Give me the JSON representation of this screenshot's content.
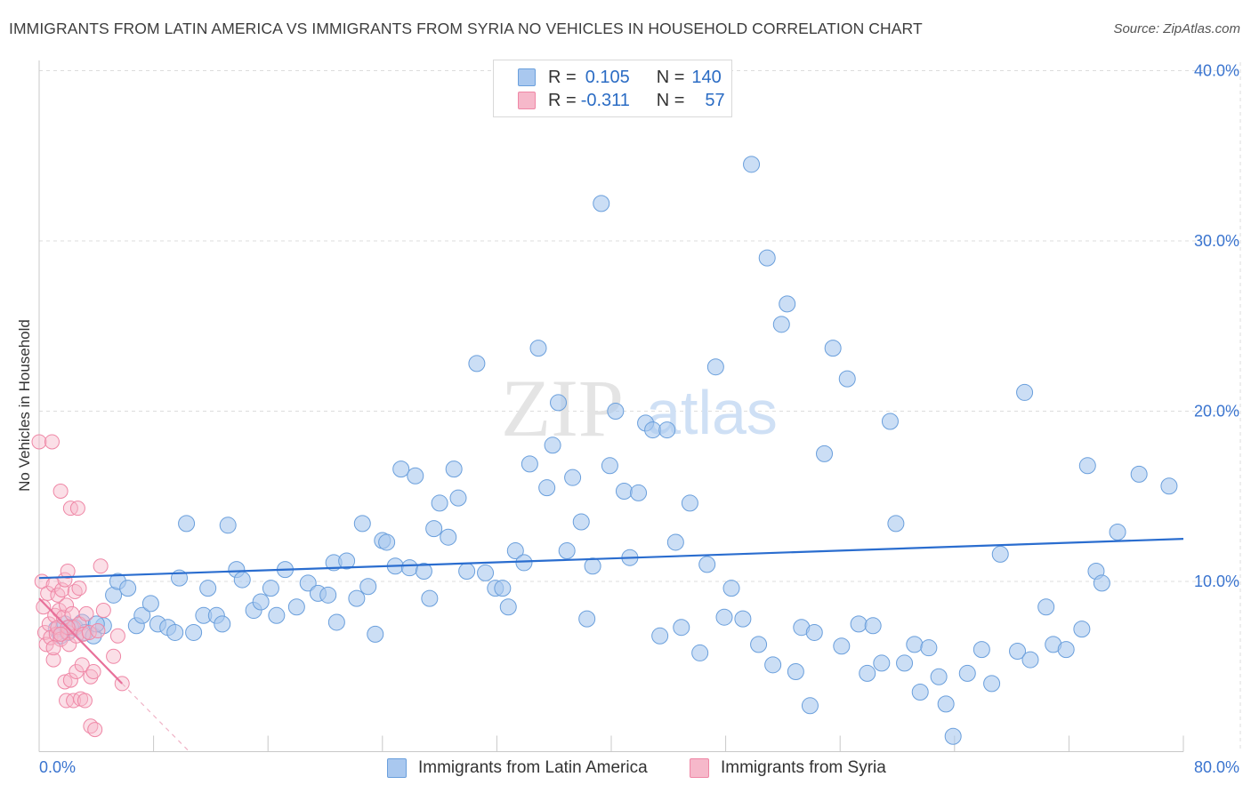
{
  "title": "IMMIGRANTS FROM LATIN AMERICA VS IMMIGRANTS FROM SYRIA NO VEHICLES IN HOUSEHOLD CORRELATION CHART",
  "source": "Source: ZipAtlas.com",
  "watermark": {
    "zip": "ZIP",
    "atlas": "atlas"
  },
  "legend": {
    "rows": [
      {
        "r_label": "R =",
        "r_value": "0.105",
        "n_label": "N =",
        "n_value": "140",
        "color": "#a9c8ef"
      },
      {
        "r_label": "R =",
        "r_value": "-0.311",
        "n_label": "N =",
        "n_value": "57",
        "color": "#f6b8ca"
      }
    ]
  },
  "colors": {
    "blue_fill": "#a9c8ef",
    "blue_stroke": "#6a9fdc",
    "blue_line": "#2a6dcf",
    "pink_fill": "#f6b8ca",
    "pink_stroke": "#ef87a6",
    "pink_line": "#e8709a",
    "axis_text": "#3a74cf",
    "grid": "#dcdcdc"
  },
  "chart_data": {
    "type": "scatter",
    "title": "IMMIGRANTS FROM LATIN AMERICA VS IMMIGRANTS FROM SYRIA NO VEHICLES IN HOUSEHOLD CORRELATION CHART",
    "xlabel": "",
    "ylabel": "No Vehicles in Household",
    "xlim": [
      0,
      80
    ],
    "ylim": [
      0,
      42
    ],
    "x_tick_labels": [
      "0.0%",
      "80.0%"
    ],
    "y_ticks": [
      10,
      20,
      30,
      40
    ],
    "y_tick_labels": [
      "10.0%",
      "20.0%",
      "30.0%",
      "40.0%"
    ],
    "grid": true,
    "legend_position": "top-center",
    "series": [
      {
        "name": "Immigrants from Latin America",
        "r": 0.105,
        "n": 140,
        "trend": [
          [
            0,
            10.2
          ],
          [
            80,
            12.5
          ]
        ],
        "points": [
          [
            1.2,
            7.2
          ],
          [
            1.5,
            6.8
          ],
          [
            1.8,
            7.5
          ],
          [
            2.0,
            7.0
          ],
          [
            2.5,
            7.3
          ],
          [
            3.0,
            7.6
          ],
          [
            3.2,
            7.0
          ],
          [
            3.8,
            6.8
          ],
          [
            4.5,
            7.4
          ],
          [
            5.2,
            9.2
          ],
          [
            5.5,
            10.0
          ],
          [
            6.2,
            9.6
          ],
          [
            6.8,
            7.4
          ],
          [
            7.2,
            8.0
          ],
          [
            7.8,
            8.7
          ],
          [
            8.3,
            7.5
          ],
          [
            9.0,
            7.3
          ],
          [
            9.5,
            7.0
          ],
          [
            9.8,
            10.2
          ],
          [
            10.3,
            13.4
          ],
          [
            10.8,
            7.0
          ],
          [
            11.5,
            8.0
          ],
          [
            11.8,
            9.6
          ],
          [
            12.4,
            8.0
          ],
          [
            12.8,
            7.5
          ],
          [
            13.2,
            13.3
          ],
          [
            13.8,
            10.7
          ],
          [
            14.2,
            10.1
          ],
          [
            15.0,
            8.3
          ],
          [
            15.5,
            8.8
          ],
          [
            16.2,
            9.6
          ],
          [
            16.6,
            8.0
          ],
          [
            17.2,
            10.7
          ],
          [
            18.0,
            8.5
          ],
          [
            18.8,
            9.9
          ],
          [
            19.5,
            9.3
          ],
          [
            20.2,
            9.2
          ],
          [
            20.6,
            11.1
          ],
          [
            20.8,
            7.6
          ],
          [
            21.5,
            11.2
          ],
          [
            22.2,
            9.0
          ],
          [
            22.6,
            13.4
          ],
          [
            23.0,
            9.7
          ],
          [
            23.5,
            6.9
          ],
          [
            24.0,
            12.4
          ],
          [
            24.3,
            12.3
          ],
          [
            24.9,
            10.9
          ],
          [
            25.3,
            16.6
          ],
          [
            25.9,
            10.8
          ],
          [
            26.3,
            16.2
          ],
          [
            26.9,
            10.6
          ],
          [
            27.3,
            9.0
          ],
          [
            27.6,
            13.1
          ],
          [
            28.0,
            14.6
          ],
          [
            28.6,
            12.6
          ],
          [
            29.0,
            16.6
          ],
          [
            29.3,
            14.9
          ],
          [
            29.9,
            10.6
          ],
          [
            30.6,
            22.8
          ],
          [
            31.2,
            10.5
          ],
          [
            31.9,
            9.6
          ],
          [
            32.4,
            9.6
          ],
          [
            32.8,
            8.5
          ],
          [
            33.3,
            11.8
          ],
          [
            33.9,
            11.1
          ],
          [
            34.3,
            16.9
          ],
          [
            34.9,
            23.7
          ],
          [
            35.5,
            15.5
          ],
          [
            35.9,
            18.0
          ],
          [
            36.3,
            20.5
          ],
          [
            36.9,
            11.8
          ],
          [
            37.3,
            16.1
          ],
          [
            37.9,
            13.5
          ],
          [
            38.3,
            7.8
          ],
          [
            38.7,
            10.9
          ],
          [
            39.3,
            32.2
          ],
          [
            39.9,
            16.8
          ],
          [
            40.3,
            20.0
          ],
          [
            40.9,
            15.3
          ],
          [
            41.3,
            11.4
          ],
          [
            41.9,
            15.2
          ],
          [
            42.4,
            19.3
          ],
          [
            42.9,
            18.9
          ],
          [
            43.4,
            6.8
          ],
          [
            43.9,
            18.9
          ],
          [
            44.5,
            12.3
          ],
          [
            44.9,
            7.3
          ],
          [
            45.5,
            14.6
          ],
          [
            46.2,
            5.8
          ],
          [
            46.7,
            11.0
          ],
          [
            47.3,
            22.6
          ],
          [
            47.9,
            7.9
          ],
          [
            48.4,
            9.6
          ],
          [
            49.2,
            7.8
          ],
          [
            49.8,
            34.5
          ],
          [
            50.3,
            6.3
          ],
          [
            50.9,
            29.0
          ],
          [
            51.3,
            5.1
          ],
          [
            51.9,
            25.1
          ],
          [
            52.3,
            26.3
          ],
          [
            52.9,
            4.7
          ],
          [
            53.3,
            7.3
          ],
          [
            53.9,
            2.7
          ],
          [
            54.2,
            7.0
          ],
          [
            54.9,
            17.5
          ],
          [
            55.5,
            23.7
          ],
          [
            56.1,
            6.2
          ],
          [
            56.5,
            21.9
          ],
          [
            57.3,
            7.5
          ],
          [
            57.9,
            4.6
          ],
          [
            58.3,
            7.4
          ],
          [
            58.9,
            5.2
          ],
          [
            59.5,
            19.4
          ],
          [
            59.9,
            13.4
          ],
          [
            60.5,
            5.2
          ],
          [
            61.2,
            6.3
          ],
          [
            61.6,
            3.5
          ],
          [
            62.2,
            6.1
          ],
          [
            62.9,
            4.4
          ],
          [
            63.4,
            2.8
          ],
          [
            63.9,
            0.9
          ],
          [
            64.9,
            4.6
          ],
          [
            65.9,
            6.0
          ],
          [
            66.6,
            4.0
          ],
          [
            67.2,
            11.6
          ],
          [
            68.4,
            5.9
          ],
          [
            68.9,
            21.1
          ],
          [
            69.3,
            5.4
          ],
          [
            70.4,
            8.5
          ],
          [
            70.9,
            6.3
          ],
          [
            71.8,
            6.0
          ],
          [
            72.9,
            7.2
          ],
          [
            73.3,
            16.8
          ],
          [
            73.9,
            10.6
          ],
          [
            74.3,
            9.9
          ],
          [
            75.4,
            12.9
          ],
          [
            76.9,
            16.3
          ],
          [
            79.0,
            15.6
          ],
          [
            4.0,
            7.5
          ],
          [
            2.2,
            7.3
          ]
        ]
      },
      {
        "name": "Immigrants from Syria",
        "r": -0.311,
        "n": 57,
        "trend": [
          [
            0,
            9.0
          ],
          [
            5.8,
            4.0
          ]
        ],
        "trend_extension": [
          [
            5.8,
            4.0
          ],
          [
            10.5,
            0
          ]
        ],
        "points": [
          [
            0.0,
            18.2
          ],
          [
            0.2,
            10.0
          ],
          [
            0.3,
            8.5
          ],
          [
            0.4,
            7.0
          ],
          [
            0.5,
            6.3
          ],
          [
            0.6,
            9.3
          ],
          [
            0.7,
            7.5
          ],
          [
            0.8,
            6.7
          ],
          [
            0.9,
            18.2
          ],
          [
            1.0,
            5.4
          ],
          [
            1.0,
            9.8
          ],
          [
            1.1,
            8.0
          ],
          [
            1.2,
            6.9
          ],
          [
            1.3,
            9.2
          ],
          [
            1.3,
            7.3
          ],
          [
            1.4,
            8.3
          ],
          [
            1.5,
            15.3
          ],
          [
            1.5,
            6.6
          ],
          [
            1.6,
            9.5
          ],
          [
            1.7,
            7.9
          ],
          [
            1.8,
            4.1
          ],
          [
            1.8,
            10.1
          ],
          [
            1.9,
            8.6
          ],
          [
            1.9,
            3.0
          ],
          [
            2.0,
            7.0
          ],
          [
            2.0,
            10.6
          ],
          [
            2.1,
            6.3
          ],
          [
            2.2,
            14.3
          ],
          [
            2.2,
            4.2
          ],
          [
            2.3,
            8.1
          ],
          [
            2.4,
            7.3
          ],
          [
            2.4,
            3.0
          ],
          [
            2.5,
            9.4
          ],
          [
            2.6,
            6.8
          ],
          [
            2.6,
            4.7
          ],
          [
            2.7,
            14.3
          ],
          [
            2.8,
            9.6
          ],
          [
            2.8,
            7.5
          ],
          [
            2.9,
            3.1
          ],
          [
            3.0,
            5.1
          ],
          [
            3.1,
            6.9
          ],
          [
            3.2,
            3.0
          ],
          [
            3.3,
            8.1
          ],
          [
            3.5,
            7.0
          ],
          [
            3.6,
            1.5
          ],
          [
            3.6,
            4.4
          ],
          [
            3.8,
            4.7
          ],
          [
            3.9,
            1.3
          ],
          [
            4.1,
            7.1
          ],
          [
            4.3,
            10.9
          ],
          [
            4.5,
            8.3
          ],
          [
            5.2,
            5.6
          ],
          [
            5.5,
            6.8
          ],
          [
            5.8,
            4.0
          ],
          [
            1.0,
            6.1
          ],
          [
            2.0,
            7.3
          ],
          [
            1.5,
            6.9
          ]
        ]
      }
    ]
  }
}
